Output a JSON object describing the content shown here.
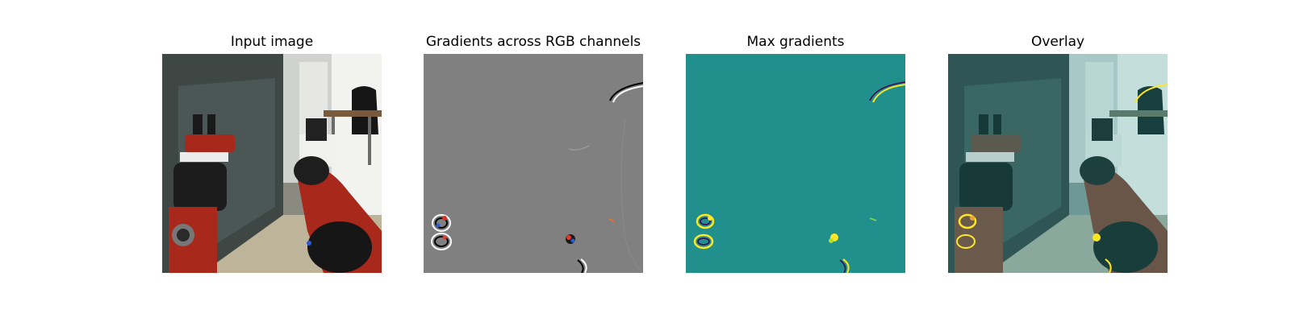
{
  "figure": {
    "panels": [
      {
        "title": "Input image"
      },
      {
        "title": "Gradients across RGB channels"
      },
      {
        "title": "Max gradients"
      },
      {
        "title": "Overlay"
      }
    ]
  },
  "colors": {
    "background": "#ffffff",
    "gradient_gray": "#808080",
    "max_grad_teal": "#21908c",
    "highlight_yellow": "#fde725",
    "robot_red": "#a8281c"
  }
}
